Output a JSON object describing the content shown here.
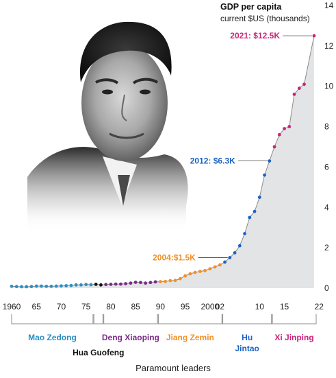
{
  "chart_data": {
    "type": "area",
    "title": "GDP per capita",
    "subtitle": "current $US (thousands)",
    "xlabel": "Paramount leaders",
    "ylabel": "",
    "xlim": [
      1960,
      2021
    ],
    "ylim": [
      0,
      14
    ],
    "grid": false,
    "y_ticks": [
      0,
      2,
      4,
      6,
      8,
      10,
      12,
      14
    ],
    "x_ticks": [
      {
        "value": 1960,
        "label": "1960"
      },
      {
        "value": 1965,
        "label": "65"
      },
      {
        "value": 1970,
        "label": "70"
      },
      {
        "value": 1975,
        "label": "75"
      },
      {
        "value": 1980,
        "label": "80"
      },
      {
        "value": 1985,
        "label": "85"
      },
      {
        "value": 1990,
        "label": "90"
      },
      {
        "value": 1995,
        "label": "95"
      },
      {
        "value": 2000,
        "label": "2000"
      },
      {
        "value": 2002,
        "label": "02"
      },
      {
        "value": 2010,
        "label": "10"
      },
      {
        "value": 2015,
        "label": "15"
      },
      {
        "value": 2022,
        "label": "22"
      }
    ],
    "values": [
      [
        1960,
        0.09
      ],
      [
        1961,
        0.08
      ],
      [
        1962,
        0.07
      ],
      [
        1963,
        0.07
      ],
      [
        1964,
        0.08
      ],
      [
        1965,
        0.1
      ],
      [
        1966,
        0.1
      ],
      [
        1967,
        0.09
      ],
      [
        1968,
        0.09
      ],
      [
        1969,
        0.1
      ],
      [
        1970,
        0.11
      ],
      [
        1971,
        0.12
      ],
      [
        1972,
        0.13
      ],
      [
        1973,
        0.16
      ],
      [
        1974,
        0.16
      ],
      [
        1975,
        0.18
      ],
      [
        1976,
        0.17
      ],
      [
        1977,
        0.19
      ],
      [
        1978,
        0.16
      ],
      [
        1979,
        0.18
      ],
      [
        1980,
        0.19
      ],
      [
        1981,
        0.2
      ],
      [
        1982,
        0.2
      ],
      [
        1983,
        0.22
      ],
      [
        1984,
        0.25
      ],
      [
        1985,
        0.29
      ],
      [
        1986,
        0.28
      ],
      [
        1987,
        0.25
      ],
      [
        1988,
        0.28
      ],
      [
        1989,
        0.31
      ],
      [
        1990,
        0.32
      ],
      [
        1991,
        0.33
      ],
      [
        1992,
        0.37
      ],
      [
        1993,
        0.38
      ],
      [
        1994,
        0.47
      ],
      [
        1995,
        0.61
      ],
      [
        1996,
        0.71
      ],
      [
        1997,
        0.78
      ],
      [
        1998,
        0.83
      ],
      [
        1999,
        0.87
      ],
      [
        2000,
        0.96
      ],
      [
        2001,
        1.05
      ],
      [
        2002,
        1.15
      ],
      [
        2003,
        1.29
      ],
      [
        2004,
        1.51
      ],
      [
        2005,
        1.75
      ],
      [
        2006,
        2.1
      ],
      [
        2007,
        2.7
      ],
      [
        2008,
        3.5
      ],
      [
        2009,
        3.8
      ],
      [
        2010,
        4.5
      ],
      [
        2011,
        5.6
      ],
      [
        2012,
        6.3
      ],
      [
        2013,
        7.0
      ],
      [
        2014,
        7.6
      ],
      [
        2015,
        7.9
      ],
      [
        2016,
        8.0
      ],
      [
        2017,
        9.6
      ],
      [
        2018,
        9.9
      ],
      [
        2019,
        10.1
      ],
      [
        2021,
        12.5
      ]
    ],
    "leaders": [
      {
        "name": "Mao Zedong",
        "start": 1960,
        "end": 1976,
        "color": "#2a8fc4"
      },
      {
        "name": "Hua Guofeng",
        "start": 1977,
        "end": 1978,
        "color": "#111111"
      },
      {
        "name": "Deng Xiaoping",
        "start": 1979,
        "end": 1989,
        "color": "#7b2a86"
      },
      {
        "name": "Jiang Zemin",
        "start": 1990,
        "end": 2002,
        "color": "#f0912a"
      },
      {
        "name": "Hu Jintao",
        "start": 2003,
        "end": 2012,
        "color": "#1a62c4"
      },
      {
        "name": "Xi Jinping",
        "start": 2013,
        "end": 2021,
        "color": "#c8247a"
      }
    ],
    "annotations": [
      {
        "x": 2004,
        "y": 1.51,
        "label": "2004:$1.5K",
        "color": "#f0912a"
      },
      {
        "x": 2012,
        "y": 6.3,
        "label": "2012: $6.3K",
        "color": "#1a62c4"
      },
      {
        "x": 2021,
        "y": 12.5,
        "label": "2021: $12.5K",
        "color": "#c8247a"
      }
    ],
    "colors": {
      "area": "#e3e4e6",
      "line": "#8a8a8a",
      "bracket": "#8c8c8c"
    },
    "image": "portrait-photo"
  }
}
